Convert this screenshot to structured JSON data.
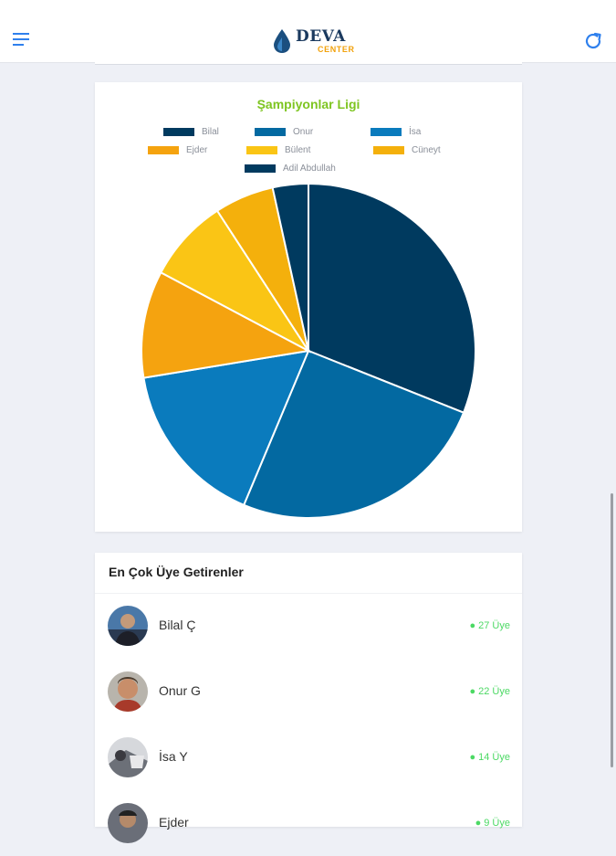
{
  "header": {
    "logo_main": "DEVA",
    "logo_sub": "CENTER",
    "menu_icon": "hamburger-menu-icon",
    "refresh_icon": "refresh-icon",
    "colors": {
      "logo_main": "#1b3a5f",
      "logo_sub": "#f2a20c",
      "icon": "#2f80ed"
    }
  },
  "chart_card": {
    "title": "Şampiyonlar Ligi"
  },
  "chart_data": {
    "type": "pie",
    "title": "Şampiyonlar Ligi",
    "legend_placement": "top",
    "categories": [
      "Bilal",
      "Onur",
      "İsa",
      "Ejder",
      "Bülent",
      "Cüneyt",
      "Adil Abdullah"
    ],
    "values": [
      27,
      22,
      14,
      9,
      7,
      5,
      3
    ],
    "colors": [
      "#003a5f",
      "#0369a1",
      "#0a7bbd",
      "#f5a30f",
      "#fac515",
      "#f4b00c",
      "#003a5f"
    ]
  },
  "members": {
    "title": "En Çok Üye Getirenler",
    "rows": [
      {
        "name": "Bilal Ç",
        "count": "● 27 Üye"
      },
      {
        "name": "Onur G",
        "count": "● 22 Üye"
      },
      {
        "name": "İsa Y",
        "count": "● 14 Üye"
      },
      {
        "name": "Ejder",
        "count": "● 9 Üye"
      }
    ]
  }
}
